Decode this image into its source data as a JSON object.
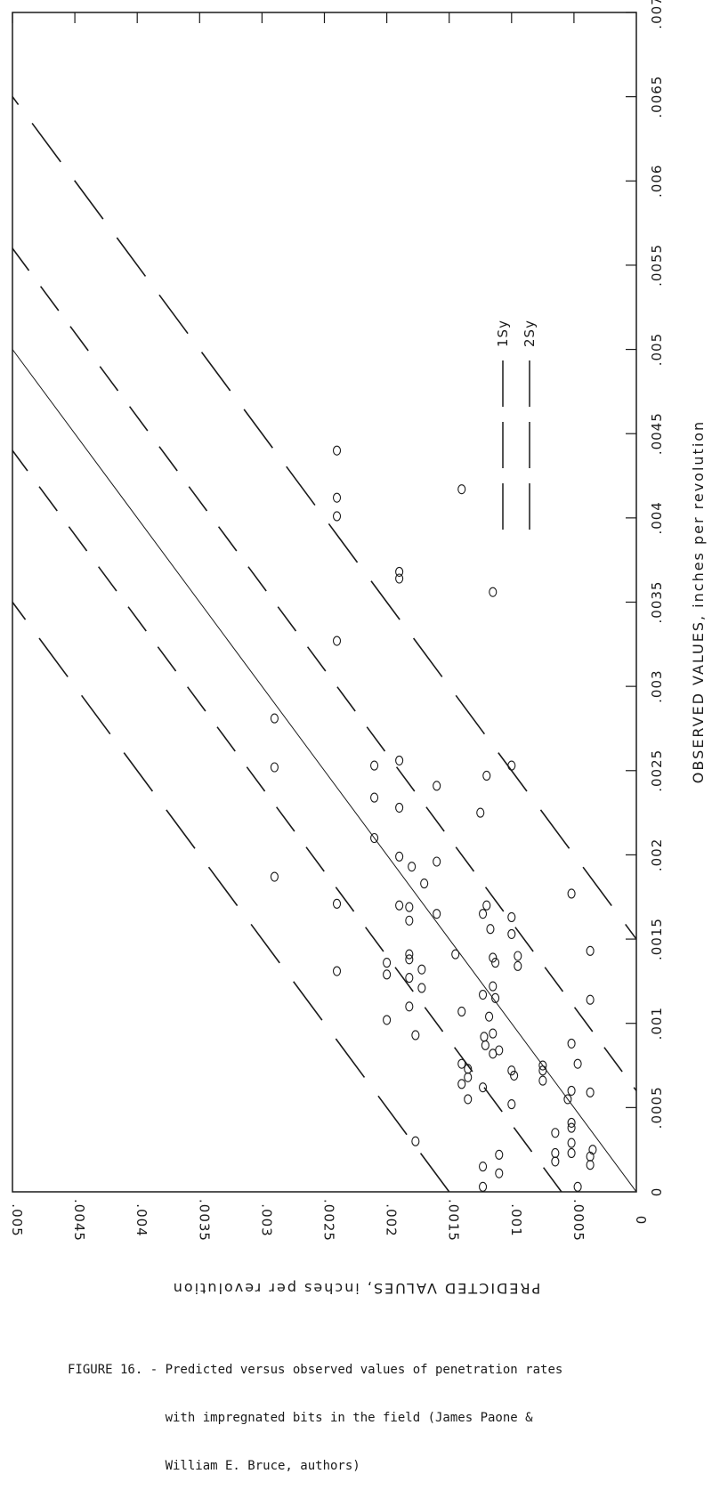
{
  "chart_data": {
    "type": "scatter",
    "orientation": "rotated 90 degrees clockwise",
    "xlabel": "OBSERVED VALUES, inches per revolution",
    "ylabel": "PREDICTED VALUES, inches per revolution",
    "xlim": [
      0,
      0.007
    ],
    "ylim": [
      0,
      0.005
    ],
    "xticks": [
      "0",
      ".0005",
      ".001",
      ".0015",
      ".002",
      ".0025",
      ".003",
      ".0035",
      ".004",
      ".0045",
      ".005",
      ".0055",
      ".006",
      ".0065",
      ".007"
    ],
    "yticks": [
      "0",
      ".0005",
      ".001",
      ".0015",
      ".002",
      ".0025",
      ".003",
      ".0035",
      ".004",
      ".0045",
      ".005"
    ],
    "grid": false,
    "legend_position": "upper-right",
    "legend": [
      {
        "label": "1Sy",
        "style": "long-dash"
      },
      {
        "label": "2Sy",
        "style": "long-dash"
      }
    ],
    "lines": [
      {
        "name": "y = x",
        "intercept": 0,
        "style": "solid"
      },
      {
        "intercept": 0.0006,
        "style": "dash"
      },
      {
        "intercept": -0.0006,
        "style": "dash"
      },
      {
        "intercept": 0.0015,
        "style": "long-dash"
      },
      {
        "intercept": -0.0015,
        "style": "long-dash"
      }
    ],
    "points": [
      {
        "x": 0.0044,
        "y": 0.0024
      },
      {
        "x": 0.00412,
        "y": 0.0024
      },
      {
        "x": 0.00401,
        "y": 0.0024
      },
      {
        "x": 0.00327,
        "y": 0.0024
      },
      {
        "x": 0.00417,
        "y": 0.0014
      },
      {
        "x": 0.00368,
        "y": 0.0019
      },
      {
        "x": 0.00364,
        "y": 0.0019
      },
      {
        "x": 0.00356,
        "y": 0.00115
      },
      {
        "x": 0.00281,
        "y": 0.0029
      },
      {
        "x": 0.00252,
        "y": 0.0029
      },
      {
        "x": 0.00187,
        "y": 0.0029
      },
      {
        "x": 0.00253,
        "y": 0.0021
      },
      {
        "x": 0.00234,
        "y": 0.0021
      },
      {
        "x": 0.0021,
        "y": 0.0021
      },
      {
        "x": 0.00256,
        "y": 0.0019
      },
      {
        "x": 0.00228,
        "y": 0.0019
      },
      {
        "x": 0.00199,
        "y": 0.0019
      },
      {
        "x": 0.00241,
        "y": 0.0016
      },
      {
        "x": 0.00196,
        "y": 0.0016
      },
      {
        "x": 0.00247,
        "y": 0.0012
      },
      {
        "x": 0.00225,
        "y": 0.00125
      },
      {
        "x": 0.00253,
        "y": 0.001
      },
      {
        "x": 0.00171,
        "y": 0.0024
      },
      {
        "x": 0.00131,
        "y": 0.0024
      },
      {
        "x": 0.00136,
        "y": 0.002
      },
      {
        "x": 0.00129,
        "y": 0.002
      },
      {
        "x": 0.00102,
        "y": 0.002
      },
      {
        "x": 0.00193,
        "y": 0.0018
      },
      {
        "x": 0.00183,
        "y": 0.0017
      },
      {
        "x": 0.0017,
        "y": 0.0019
      },
      {
        "x": 0.00169,
        "y": 0.00182
      },
      {
        "x": 0.00161,
        "y": 0.00182
      },
      {
        "x": 0.00141,
        "y": 0.00182
      },
      {
        "x": 0.00138,
        "y": 0.00182
      },
      {
        "x": 0.00132,
        "y": 0.00172
      },
      {
        "x": 0.00127,
        "y": 0.00182
      },
      {
        "x": 0.00121,
        "y": 0.00172
      },
      {
        "x": 0.0011,
        "y": 0.00182
      },
      {
        "x": 0.00093,
        "y": 0.00177
      },
      {
        "x": 0.00165,
        "y": 0.0016
      },
      {
        "x": 0.00141,
        "y": 0.00145
      },
      {
        "x": 0.00107,
        "y": 0.0014
      },
      {
        "x": 0.00076,
        "y": 0.0014
      },
      {
        "x": 0.0003,
        "y": 0.00177
      },
      {
        "x": 0.0017,
        "y": 0.0012
      },
      {
        "x": 0.00165,
        "y": 0.00123
      },
      {
        "x": 0.00156,
        "y": 0.00117
      },
      {
        "x": 0.00139,
        "y": 0.00115
      },
      {
        "x": 0.00136,
        "y": 0.00113
      },
      {
        "x": 0.00122,
        "y": 0.00115
      },
      {
        "x": 0.00117,
        "y": 0.00123
      },
      {
        "x": 0.00115,
        "y": 0.00113
      },
      {
        "x": 0.00104,
        "y": 0.00118
      },
      {
        "x": 0.00094,
        "y": 0.00115
      },
      {
        "x": 0.00092,
        "y": 0.00122
      },
      {
        "x": 0.00087,
        "y": 0.00121
      },
      {
        "x": 0.00082,
        "y": 0.00115
      },
      {
        "x": 0.00084,
        "y": 0.0011
      },
      {
        "x": 0.00073,
        "y": 0.00135
      },
      {
        "x": 0.00068,
        "y": 0.00135
      },
      {
        "x": 0.00064,
        "y": 0.0014
      },
      {
        "x": 0.00055,
        "y": 0.00135
      },
      {
        "x": 0.00062,
        "y": 0.00123
      },
      {
        "x": 0.00022,
        "y": 0.0011
      },
      {
        "x": 0.00015,
        "y": 0.00123
      },
      {
        "x": 0.00011,
        "y": 0.0011
      },
      {
        "x": 3e-05,
        "y": 0.00123
      },
      {
        "x": 0.00163,
        "y": 0.001
      },
      {
        "x": 0.00153,
        "y": 0.001
      },
      {
        "x": 0.0014,
        "y": 0.00095
      },
      {
        "x": 0.00134,
        "y": 0.00095
      },
      {
        "x": 0.00072,
        "y": 0.001
      },
      {
        "x": 0.00069,
        "y": 0.00098
      },
      {
        "x": 0.00052,
        "y": 0.001
      },
      {
        "x": 0.00075,
        "y": 0.00075
      },
      {
        "x": 0.00072,
        "y": 0.00075
      },
      {
        "x": 0.00066,
        "y": 0.00075
      },
      {
        "x": 0.00177,
        "y": 0.00052
      },
      {
        "x": 0.00143,
        "y": 0.00037
      },
      {
        "x": 0.00114,
        "y": 0.00037
      },
      {
        "x": 0.00088,
        "y": 0.00052
      },
      {
        "x": 0.0006,
        "y": 0.00052
      },
      {
        "x": 0.00055,
        "y": 0.00055
      },
      {
        "x": 0.00041,
        "y": 0.00052
      },
      {
        "x": 0.00038,
        "y": 0.00052
      },
      {
        "x": 0.00029,
        "y": 0.00052
      },
      {
        "x": 0.00023,
        "y": 0.00052
      },
      {
        "x": 0.00076,
        "y": 0.00047
      },
      {
        "x": 0.00059,
        "y": 0.00037
      },
      {
        "x": 0.00035,
        "y": 0.00065
      },
      {
        "x": 0.00023,
        "y": 0.00065
      },
      {
        "x": 0.00018,
        "y": 0.00065
      },
      {
        "x": 0.00025,
        "y": 0.00035
      },
      {
        "x": 0.00021,
        "y": 0.00037
      },
      {
        "x": 0.00016,
        "y": 0.00037
      },
      {
        "x": 3e-05,
        "y": 0.00047
      }
    ]
  },
  "caption": {
    "lines": [
      "FIGURE 16. - Predicted versus observed values of penetration rates",
      "             with impregnated bits in the field (James Paone &",
      "             William E. Bruce, authors)"
    ]
  }
}
